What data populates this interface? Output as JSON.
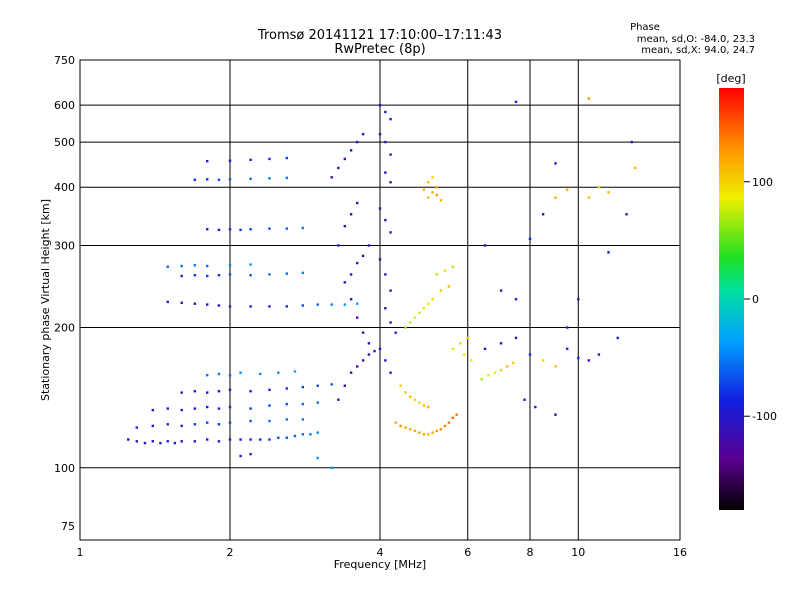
{
  "chart_data": {
    "type": "scatter",
    "title": "Tromsø 20141121 17:10:00–17:11:43",
    "subtitle": "RwPretec (8p)",
    "xlabel": "Frequency [MHz]",
    "ylabel": "Stationary phase Virtual Height [km]",
    "x_scale": "log",
    "y_scale": "log",
    "xlim": [
      1,
      16
    ],
    "ylim": [
      70,
      750
    ],
    "x_ticks": [
      1,
      2,
      4,
      6,
      8,
      10,
      16
    ],
    "y_ticks": [
      75,
      100,
      200,
      300,
      400,
      500,
      600,
      750
    ],
    "grid": true,
    "phase_info": {
      "heading": "Phase",
      "line_o": "mean, sd,O: -84.0, 23.3",
      "line_x": "mean, sd,X:  94.0, 24.7"
    },
    "colorbar": {
      "label": "[deg]",
      "ticks": [
        100,
        0,
        -100
      ],
      "range": [
        -180,
        180
      ]
    },
    "series": [
      {
        "points": [
          [
            1.25,
            115,
            -110
          ],
          [
            1.3,
            114,
            -105
          ],
          [
            1.35,
            113,
            -100
          ],
          [
            1.4,
            114,
            -95
          ],
          [
            1.45,
            113,
            -100
          ],
          [
            1.5,
            114,
            -95
          ],
          [
            1.55,
            113,
            -100
          ],
          [
            1.6,
            114,
            -95
          ],
          [
            1.7,
            114,
            -100
          ],
          [
            1.8,
            115,
            -95
          ],
          [
            1.9,
            114,
            -90
          ],
          [
            2.0,
            115,
            -95
          ],
          [
            2.1,
            115,
            -90
          ],
          [
            2.2,
            115,
            -85
          ],
          [
            2.3,
            115,
            -80
          ],
          [
            2.4,
            115,
            -75
          ],
          [
            2.5,
            116,
            -70
          ],
          [
            2.6,
            116,
            -65
          ],
          [
            2.7,
            117,
            -60
          ],
          [
            2.8,
            118,
            -55
          ],
          [
            2.9,
            118,
            -50
          ],
          [
            3.0,
            119,
            -45
          ],
          [
            1.3,
            122,
            -95
          ],
          [
            1.4,
            123,
            -90
          ],
          [
            1.5,
            124,
            -85
          ],
          [
            1.6,
            123,
            -80
          ],
          [
            1.7,
            124,
            -75
          ],
          [
            1.8,
            125,
            -70
          ],
          [
            1.9,
            124,
            -75
          ],
          [
            2.0,
            125,
            -70
          ],
          [
            2.2,
            126,
            -65
          ],
          [
            2.4,
            126,
            -60
          ],
          [
            2.6,
            127,
            -55
          ],
          [
            2.8,
            127,
            -50
          ],
          [
            1.4,
            133,
            -100
          ],
          [
            1.5,
            134,
            -95
          ],
          [
            1.6,
            133,
            -90
          ],
          [
            1.7,
            134,
            -95
          ],
          [
            1.8,
            135,
            -90
          ],
          [
            1.9,
            134,
            -85
          ],
          [
            2.0,
            135,
            -80
          ],
          [
            2.2,
            134,
            -75
          ],
          [
            2.4,
            136,
            -70
          ],
          [
            2.6,
            137,
            -65
          ],
          [
            2.8,
            137,
            -60
          ],
          [
            3.0,
            138,
            -55
          ],
          [
            1.6,
            145,
            -105
          ],
          [
            1.7,
            146,
            -100
          ],
          [
            1.8,
            145,
            -95
          ],
          [
            1.9,
            146,
            -100
          ],
          [
            2.0,
            147,
            -95
          ],
          [
            2.2,
            146,
            -90
          ],
          [
            2.4,
            147,
            -85
          ],
          [
            2.6,
            148,
            -80
          ],
          [
            2.8,
            149,
            -75
          ],
          [
            3.0,
            150,
            -70
          ],
          [
            3.2,
            151,
            -65
          ],
          [
            1.8,
            158,
            -55
          ],
          [
            1.9,
            159,
            -50
          ],
          [
            2.0,
            158,
            -55
          ],
          [
            2.1,
            160,
            -45
          ],
          [
            2.3,
            159,
            -40
          ],
          [
            2.5,
            160,
            -45
          ],
          [
            2.7,
            161,
            -35
          ],
          [
            1.5,
            227,
            -110
          ],
          [
            1.6,
            226,
            -105
          ],
          [
            1.7,
            225,
            -100
          ],
          [
            1.8,
            224,
            -105
          ],
          [
            1.9,
            223,
            -100
          ],
          [
            2.0,
            222,
            -95
          ],
          [
            2.2,
            222,
            -90
          ],
          [
            2.4,
            222,
            -85
          ],
          [
            2.6,
            222,
            -80
          ],
          [
            2.8,
            223,
            -70
          ],
          [
            3.0,
            224,
            -60
          ],
          [
            3.2,
            224,
            -50
          ],
          [
            3.4,
            224,
            -40
          ],
          [
            3.6,
            225,
            -30
          ],
          [
            1.6,
            258,
            -85
          ],
          [
            1.7,
            259,
            -80
          ],
          [
            1.8,
            258,
            -75
          ],
          [
            1.9,
            259,
            -80
          ],
          [
            2.0,
            260,
            -70
          ],
          [
            2.2,
            259,
            -65
          ],
          [
            2.4,
            260,
            -60
          ],
          [
            2.6,
            261,
            -55
          ],
          [
            2.8,
            262,
            -50
          ],
          [
            1.5,
            270,
            -60
          ],
          [
            1.6,
            271,
            -55
          ],
          [
            1.7,
            272,
            -50
          ],
          [
            1.8,
            271,
            -55
          ],
          [
            2.0,
            272,
            -45
          ],
          [
            2.2,
            273,
            -40
          ],
          [
            1.8,
            325,
            -95
          ],
          [
            1.9,
            324,
            -90
          ],
          [
            2.0,
            325,
            -85
          ],
          [
            2.1,
            324,
            -80
          ],
          [
            2.2,
            325,
            -75
          ],
          [
            2.4,
            326,
            -70
          ],
          [
            2.6,
            326,
            -60
          ],
          [
            2.8,
            327,
            -50
          ],
          [
            1.7,
            415,
            -80
          ],
          [
            1.8,
            416,
            -75
          ],
          [
            1.9,
            415,
            -70
          ],
          [
            2.0,
            416,
            -65
          ],
          [
            2.2,
            417,
            -60
          ],
          [
            2.4,
            418,
            -55
          ],
          [
            2.6,
            419,
            -50
          ],
          [
            1.8,
            455,
            -95
          ],
          [
            2.0,
            456,
            -90
          ],
          [
            2.2,
            458,
            -85
          ],
          [
            2.4,
            460,
            -80
          ],
          [
            2.6,
            462,
            -75
          ],
          [
            3.0,
            105,
            -40
          ],
          [
            3.2,
            100,
            -35
          ],
          [
            2.1,
            106,
            -100
          ],
          [
            2.2,
            107,
            -95
          ],
          [
            3.3,
            300,
            -90
          ],
          [
            3.4,
            250,
            -110
          ],
          [
            3.5,
            230,
            -120
          ],
          [
            3.6,
            210,
            -125
          ],
          [
            3.7,
            195,
            -120
          ],
          [
            3.8,
            185,
            -115
          ],
          [
            3.9,
            178,
            -110
          ],
          [
            3.5,
            160,
            -130
          ],
          [
            3.6,
            165,
            -125
          ],
          [
            3.7,
            170,
            -120
          ],
          [
            3.8,
            175,
            -115
          ],
          [
            3.4,
            150,
            -120
          ],
          [
            3.3,
            140,
            -115
          ],
          [
            3.5,
            260,
            -115
          ],
          [
            3.6,
            275,
            -110
          ],
          [
            3.7,
            285,
            -105
          ],
          [
            3.8,
            300,
            -100
          ],
          [
            3.4,
            330,
            -105
          ],
          [
            3.5,
            350,
            -100
          ],
          [
            3.6,
            370,
            -110
          ],
          [
            3.2,
            420,
            -120
          ],
          [
            3.3,
            440,
            -115
          ],
          [
            3.4,
            460,
            -120
          ],
          [
            3.5,
            480,
            -115
          ],
          [
            3.6,
            500,
            -110
          ],
          [
            3.7,
            520,
            -105
          ],
          [
            4.0,
            600,
            -100
          ],
          [
            4.1,
            580,
            -95
          ],
          [
            4.2,
            560,
            -90
          ],
          [
            4.0,
            520,
            -110
          ],
          [
            4.1,
            500,
            -105
          ],
          [
            4.2,
            470,
            -100
          ],
          [
            4.1,
            430,
            -105
          ],
          [
            4.2,
            410,
            -110
          ],
          [
            4.0,
            360,
            -115
          ],
          [
            4.1,
            340,
            -110
          ],
          [
            4.2,
            320,
            -105
          ],
          [
            4.0,
            280,
            -110
          ],
          [
            4.1,
            260,
            -105
          ],
          [
            4.2,
            240,
            -100
          ],
          [
            4.1,
            220,
            -115
          ],
          [
            4.2,
            205,
            -110
          ],
          [
            4.3,
            195,
            -100
          ],
          [
            4.0,
            180,
            -105
          ],
          [
            4.1,
            170,
            -100
          ],
          [
            4.2,
            160,
            -95
          ],
          [
            4.4,
            150,
            100
          ],
          [
            4.5,
            145,
            105
          ],
          [
            4.6,
            142,
            110
          ],
          [
            4.7,
            140,
            100
          ],
          [
            4.8,
            138,
            95
          ],
          [
            4.9,
            136,
            110
          ],
          [
            5.0,
            135,
            115
          ],
          [
            4.3,
            125,
            120
          ],
          [
            4.4,
            123,
            125
          ],
          [
            4.5,
            122,
            120
          ],
          [
            4.6,
            121,
            115
          ],
          [
            4.7,
            120,
            120
          ],
          [
            4.8,
            119,
            125
          ],
          [
            4.9,
            118,
            120
          ],
          [
            5.0,
            118,
            115
          ],
          [
            5.1,
            119,
            120
          ],
          [
            5.2,
            120,
            125
          ],
          [
            5.3,
            121,
            130
          ],
          [
            5.4,
            123,
            135
          ],
          [
            5.5,
            125,
            140
          ],
          [
            5.6,
            128,
            145
          ],
          [
            5.7,
            130,
            140
          ],
          [
            4.5,
            200,
            60
          ],
          [
            4.6,
            205,
            70
          ],
          [
            4.7,
            210,
            80
          ],
          [
            4.8,
            215,
            75
          ],
          [
            4.9,
            220,
            85
          ],
          [
            5.0,
            225,
            90
          ],
          [
            5.1,
            230,
            95
          ],
          [
            5.0,
            380,
            110
          ],
          [
            5.1,
            390,
            115
          ],
          [
            5.2,
            400,
            120
          ],
          [
            5.0,
            410,
            105
          ],
          [
            5.1,
            420,
            100
          ],
          [
            4.9,
            395,
            110
          ],
          [
            5.2,
            385,
            125
          ],
          [
            5.3,
            375,
            115
          ],
          [
            5.2,
            260,
            100
          ],
          [
            5.4,
            265,
            95
          ],
          [
            5.6,
            270,
            100
          ],
          [
            5.3,
            240,
            105
          ],
          [
            5.5,
            245,
            110
          ],
          [
            5.6,
            180,
            90
          ],
          [
            5.8,
            185,
            95
          ],
          [
            6.0,
            190,
            100
          ],
          [
            5.9,
            175,
            85
          ],
          [
            6.1,
            170,
            90
          ],
          [
            6.4,
            155,
            70
          ],
          [
            6.6,
            158,
            80
          ],
          [
            6.8,
            160,
            90
          ],
          [
            7.0,
            162,
            100
          ],
          [
            7.2,
            165,
            110
          ],
          [
            7.4,
            168,
            100
          ],
          [
            6.5,
            180,
            -110
          ],
          [
            7.0,
            185,
            -100
          ],
          [
            7.5,
            190,
            -105
          ],
          [
            8.0,
            175,
            -95
          ],
          [
            8.5,
            170,
            100
          ],
          [
            9.0,
            165,
            110
          ],
          [
            9.5,
            180,
            -80
          ],
          [
            10.0,
            172,
            -90
          ],
          [
            10.5,
            170,
            -100
          ],
          [
            11.0,
            175,
            -95
          ],
          [
            12.0,
            190,
            -85
          ],
          [
            7.8,
            140,
            -110
          ],
          [
            8.2,
            135,
            -100
          ],
          [
            9.0,
            130,
            -105
          ],
          [
            9.5,
            200,
            -95
          ],
          [
            10.0,
            230,
            -100
          ],
          [
            6.5,
            300,
            -110
          ],
          [
            7.0,
            240,
            -105
          ],
          [
            7.5,
            230,
            -90
          ],
          [
            8.0,
            310,
            -95
          ],
          [
            8.5,
            350,
            -110
          ],
          [
            9.0,
            380,
            120
          ],
          [
            9.5,
            395,
            110
          ],
          [
            10.5,
            380,
            110
          ],
          [
            11.0,
            400,
            100
          ],
          [
            11.5,
            390,
            115
          ],
          [
            12.5,
            350,
            -100
          ],
          [
            13.0,
            440,
            110
          ],
          [
            12.8,
            500,
            -90
          ],
          [
            7.5,
            610,
            -80
          ],
          [
            10.5,
            620,
            130
          ],
          [
            9.0,
            450,
            -100
          ],
          [
            11.5,
            290,
            -90
          ]
        ]
      }
    ]
  }
}
